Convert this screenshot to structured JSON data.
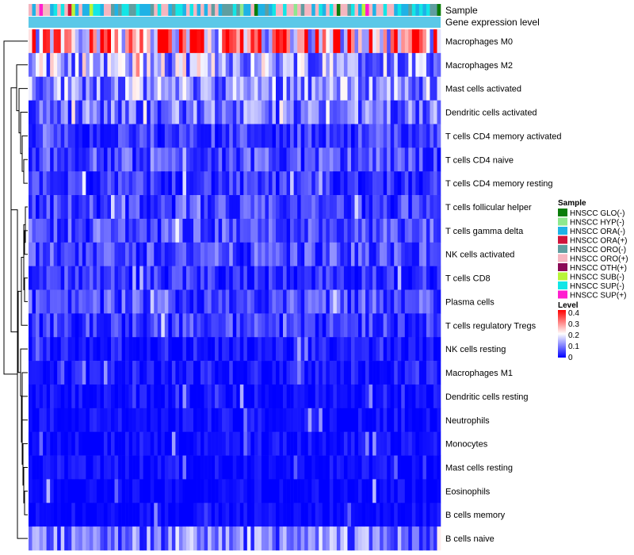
{
  "chart_data": {
    "type": "heatmap",
    "title": "",
    "annotation_rows": [
      "Sample",
      "Gene expression level"
    ],
    "rows": [
      "Macrophages M0",
      "Macrophages M2",
      "Mast cells activated",
      "Dendritic cells activated",
      "T cells CD4 memory activated",
      "T cells CD4 naive",
      "T cells CD4 memory resting",
      "T cells follicular helper",
      "T cells gamma delta",
      "NK cells activated",
      "T cells CD8",
      "Plasma cells",
      "T cells regulatory  Tregs",
      "NK cells resting",
      "Macrophages M1",
      "Dendritic cells resting",
      "Neutrophils",
      "Monocytes",
      "Mast cells resting",
      "Eosinophils",
      "B cells memory",
      "B cells naive"
    ],
    "row_mean_level": [
      0.3,
      0.14,
      0.12,
      0.09,
      0.05,
      0.06,
      0.04,
      0.05,
      0.06,
      0.06,
      0.04,
      0.06,
      0.05,
      0.02,
      0.02,
      0.01,
      0.01,
      0.01,
      0.01,
      0.005,
      0.005,
      0.1
    ],
    "n_samples": 115,
    "sample_legend": {
      "title": "Sample",
      "entries": [
        {
          "label": "HNSCC GLO(-)",
          "color": "#0a7d0a"
        },
        {
          "label": "HNSCC HYP(-)",
          "color": "#8ee88e"
        },
        {
          "label": "HNSCC ORA(-)",
          "color": "#1fb2e6"
        },
        {
          "label": "HNSCC ORA(+)",
          "color": "#d0143c"
        },
        {
          "label": "HNSCC ORO(-)",
          "color": "#5f9ea0"
        },
        {
          "label": "HNSCC ORO(+)",
          "color": "#f5b6c0"
        },
        {
          "label": "HNSCC OTH(+)",
          "color": "#8b0a57"
        },
        {
          "label": "HNSCC SUB(-)",
          "color": "#b8f53a"
        },
        {
          "label": "HNSCC SUP(-)",
          "color": "#12e6e6"
        },
        {
          "label": "HNSCC SUP(+)",
          "color": "#ff1ecf"
        }
      ]
    },
    "level_legend": {
      "title": "Level",
      "ticks": [
        "0.4",
        "0.3",
        "0.2",
        "0.1",
        "0"
      ],
      "range": [
        0,
        0.4
      ],
      "colors": [
        "#0000ff",
        "#ffffff",
        "#ff0000"
      ]
    },
    "gene_expression_bar_color": "#5bc8e8",
    "cluster_order": "hierarchical (dendrogram on rows)"
  }
}
